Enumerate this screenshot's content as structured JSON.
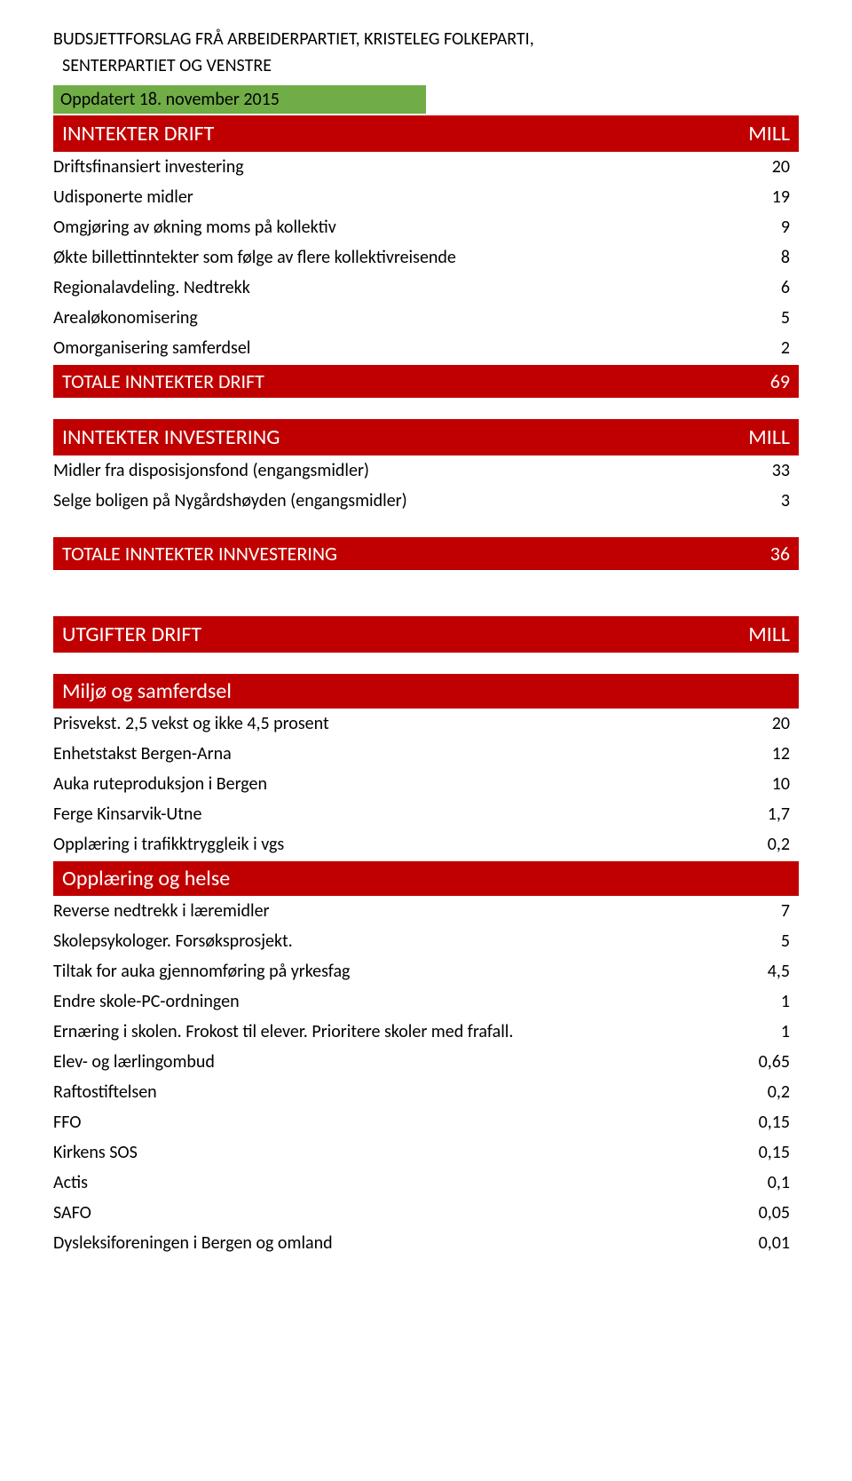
{
  "title": {
    "line1": "BUDSJETTFORSLAG FRÅ ARBEIDERPARTIET, KRISTELEG FOLKEPARTI,",
    "line2": "SENTERPARTIET OG VENSTRE"
  },
  "updated": "Oppdatert 18. november 2015",
  "colors": {
    "red": "#c00000",
    "green": "#70ad47",
    "text": "#000000",
    "white": "#ffffff"
  },
  "sections": {
    "inntekter_drift": {
      "header": "INNTEKTER DRIFT",
      "header_right": "MILL",
      "rows": [
        {
          "label": "Driftsfinansiert investering",
          "value": "20"
        },
        {
          "label": "Udisponerte midler",
          "value": "19"
        },
        {
          "label": "Omgjøring av økning moms på kollektiv",
          "value": "9"
        },
        {
          "label": "Økte billettinntekter som følge av flere kollektivreisende",
          "value": "8"
        },
        {
          "label": "Regionalavdeling. Nedtrekk",
          "value": "6"
        },
        {
          "label": "Arealøkonomisering",
          "value": "5"
        },
        {
          "label": "Omorganisering samferdsel",
          "value": "2"
        }
      ],
      "total": {
        "label": "TOTALE INNTEKTER DRIFT",
        "value": "69"
      }
    },
    "inntekter_invest": {
      "header": "INNTEKTER INVESTERING",
      "header_right": "MILL",
      "rows": [
        {
          "label": "Midler fra disposisjonsfond (engangsmidler)",
          "value": "33"
        },
        {
          "label": "Selge boligen på Nygårdshøyden (engangsmidler)",
          "value": "3"
        }
      ],
      "total": {
        "label": "TOTALE INNTEKTER INNVESTERING",
        "value": "36"
      }
    },
    "utgifter_drift": {
      "header": "UTGIFTER DRIFT",
      "header_right": "MILL"
    },
    "miljo": {
      "header": "Miljø og samferdsel",
      "rows": [
        {
          "label": "Prisvekst. 2,5 vekst og ikke 4,5 prosent",
          "value": "20"
        },
        {
          "label": "Enhetstakst Bergen-Arna",
          "value": "12"
        },
        {
          "label": "Auka ruteproduksjon i Bergen",
          "value": "10"
        },
        {
          "label": "Ferge Kinsarvik-Utne",
          "value": "1,7"
        },
        {
          "label": "Opplæring i trafikktryggleik i vgs",
          "value": "0,2"
        }
      ]
    },
    "opplaering": {
      "header": "Opplæring og helse",
      "rows": [
        {
          "label": "Reverse nedtrekk i læremidler",
          "value": "7"
        },
        {
          "label": "Skolepsykologer. Forsøksprosjekt.",
          "value": "5"
        },
        {
          "label": "Tiltak for auka gjennomføring på yrkesfag",
          "value": "4,5"
        },
        {
          "label": "Endre skole-PC-ordningen",
          "value": "1"
        },
        {
          "label": "Ernæring i skolen. Frokost til elever. Prioritere skoler med frafall.",
          "value": "1"
        },
        {
          "label": "Elev- og lærlingombud",
          "value": "0,65"
        },
        {
          "label": "Raftostiftelsen",
          "value": "0,2"
        },
        {
          "label": "FFO",
          "value": "0,15"
        },
        {
          "label": "Kirkens SOS",
          "value": "0,15"
        },
        {
          "label": "Actis",
          "value": "0,1"
        },
        {
          "label": "SAFO",
          "value": "0,05"
        },
        {
          "label": "Dysleksiforeningen i Bergen og omland",
          "value": "0,01"
        }
      ]
    }
  }
}
